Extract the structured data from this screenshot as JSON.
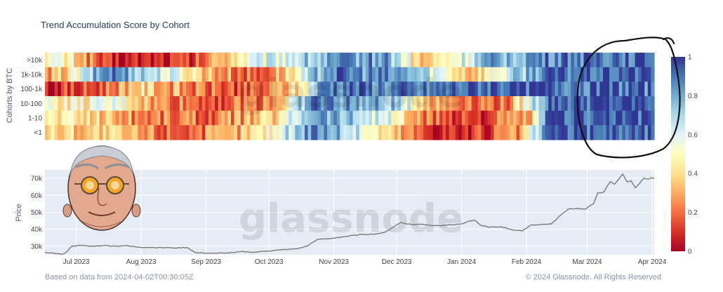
{
  "chart_data": [
    {
      "type": "heatmap",
      "title": "Trend Accumulation Score by Cohort",
      "ylabel": "Cohorts by BTC",
      "rows": [
        ">10k",
        "1k-10k",
        "100-1k",
        "10-100",
        "1-10",
        "<1"
      ],
      "columns": 190,
      "colorscale": "RdYlBu (0 = red, 0.5 = pale yellow, 1 = dark blue)",
      "colorbar": {
        "ticks": [
          "1",
          "0.8",
          "0.6",
          "0.4",
          "0.2",
          "0"
        ],
        "range": [
          0,
          1
        ]
      },
      "series": [
        {
          "name": ">10k",
          "keypoints": [
            [
              0,
              0.55
            ],
            [
              0.05,
              0.4
            ],
            [
              0.1,
              0.05
            ],
            [
              0.24,
              0.1
            ],
            [
              0.32,
              0.5
            ],
            [
              0.42,
              0.7
            ],
            [
              0.5,
              0.82
            ],
            [
              0.56,
              0.85
            ],
            [
              0.62,
              0.3
            ],
            [
              0.72,
              0.75
            ],
            [
              0.85,
              0.9
            ],
            [
              1,
              0.95
            ]
          ]
        },
        {
          "name": "1k-10k",
          "keypoints": [
            [
              0,
              0.2
            ],
            [
              0.05,
              0.5
            ],
            [
              0.1,
              0.92
            ],
            [
              0.2,
              0.6
            ],
            [
              0.28,
              0.3
            ],
            [
              0.35,
              0.15
            ],
            [
              0.42,
              0.5
            ],
            [
              0.46,
              0.9
            ],
            [
              0.6,
              0.8
            ],
            [
              0.7,
              0.35
            ],
            [
              0.82,
              0.9
            ],
            [
              1,
              0.95
            ]
          ]
        },
        {
          "name": "100-1k",
          "keypoints": [
            [
              0,
              0.08
            ],
            [
              0.08,
              0.15
            ],
            [
              0.15,
              0.4
            ],
            [
              0.25,
              0.2
            ],
            [
              0.35,
              0.15
            ],
            [
              0.42,
              0.45
            ],
            [
              0.46,
              0.92
            ],
            [
              0.62,
              0.85
            ],
            [
              0.72,
              0.95
            ],
            [
              0.82,
              0.95
            ],
            [
              1,
              0.9
            ]
          ]
        },
        {
          "name": "10-100",
          "keypoints": [
            [
              0,
              0.5
            ],
            [
              0.06,
              0.45
            ],
            [
              0.12,
              0.55
            ],
            [
              0.18,
              0.25
            ],
            [
              0.3,
              0.18
            ],
            [
              0.38,
              0.3
            ],
            [
              0.44,
              0.9
            ],
            [
              0.58,
              0.7
            ],
            [
              0.64,
              0.3
            ],
            [
              0.76,
              0.2
            ],
            [
              0.83,
              0.95
            ],
            [
              1,
              0.95
            ]
          ]
        },
        {
          "name": "1-10",
          "keypoints": [
            [
              0,
              0.45
            ],
            [
              0.08,
              0.4
            ],
            [
              0.15,
              0.25
            ],
            [
              0.28,
              0.2
            ],
            [
              0.38,
              0.4
            ],
            [
              0.44,
              0.88
            ],
            [
              0.56,
              0.6
            ],
            [
              0.62,
              0.2
            ],
            [
              0.72,
              0.12
            ],
            [
              0.8,
              0.3
            ],
            [
              0.83,
              0.95
            ],
            [
              1,
              0.95
            ]
          ]
        },
        {
          "name": "<1",
          "keypoints": [
            [
              0,
              0.4
            ],
            [
              0.1,
              0.35
            ],
            [
              0.2,
              0.2
            ],
            [
              0.3,
              0.25
            ],
            [
              0.38,
              0.55
            ],
            [
              0.44,
              0.92
            ],
            [
              0.5,
              0.7
            ],
            [
              0.56,
              0.4
            ],
            [
              0.62,
              0.15
            ],
            [
              0.7,
              0.08
            ],
            [
              0.78,
              0.25
            ],
            [
              0.83,
              0.95
            ],
            [
              1,
              0.92
            ]
          ]
        }
      ]
    },
    {
      "type": "line",
      "ylabel": "Price",
      "ylim": [
        25000,
        75000
      ],
      "yticks": [
        "30k",
        "40k",
        "50k",
        "60k",
        "70k"
      ],
      "ytick_values": [
        30000,
        40000,
        50000,
        60000,
        70000
      ],
      "xticks": [
        "Jul 2023",
        "Aug 2023",
        "Sep 2023",
        "Oct 2023",
        "Nov 2023",
        "Dec 2023",
        "Jan 2024",
        "Feb 2024",
        "Mar 2024",
        "Apr 2024"
      ],
      "xtick_days": [
        15,
        46,
        77,
        107,
        138,
        168,
        199,
        230,
        259,
        290
      ],
      "x_range_days": [
        0,
        291
      ],
      "series": [
        {
          "points": [
            [
              0,
              26500
            ],
            [
              5,
              25800
            ],
            [
              8,
              25200
            ],
            [
              10,
              26400
            ],
            [
              13,
              30200
            ],
            [
              17,
              30500
            ],
            [
              22,
              30000
            ],
            [
              28,
              30500
            ],
            [
              34,
              30100
            ],
            [
              38,
              30400
            ],
            [
              45,
              29500
            ],
            [
              52,
              29300
            ],
            [
              58,
              29200
            ],
            [
              62,
              29000
            ],
            [
              68,
              29300
            ],
            [
              72,
              26200
            ],
            [
              77,
              26000
            ],
            [
              82,
              25900
            ],
            [
              90,
              26200
            ],
            [
              95,
              26900
            ],
            [
              100,
              26500
            ],
            [
              106,
              27200
            ],
            [
              112,
              27800
            ],
            [
              120,
              28500
            ],
            [
              125,
              30000
            ],
            [
              130,
              34000
            ],
            [
              136,
              34500
            ],
            [
              140,
              35200
            ],
            [
              145,
              36000
            ],
            [
              152,
              37000
            ],
            [
              158,
              37300
            ],
            [
              162,
              38000
            ],
            [
              167,
              41800
            ],
            [
              170,
              44000
            ],
            [
              175,
              42800
            ],
            [
              180,
              43000
            ],
            [
              186,
              42200
            ],
            [
              192,
              42500
            ],
            [
              198,
              43000
            ],
            [
              205,
              45500
            ],
            [
              208,
              42500
            ],
            [
              212,
              41200
            ],
            [
              218,
              41500
            ],
            [
              223,
              39800
            ],
            [
              228,
              39000
            ],
            [
              232,
              42500
            ],
            [
              236,
              42800
            ],
            [
              242,
              43200
            ],
            [
              246,
              48000
            ],
            [
              250,
              52000
            ],
            [
              254,
              52300
            ],
            [
              258,
              51800
            ],
            [
              262,
              55000
            ],
            [
              264,
              61500
            ],
            [
              267,
              62000
            ],
            [
              270,
              68000
            ],
            [
              272,
              66500
            ],
            [
              274,
              69500
            ],
            [
              276,
              72500
            ],
            [
              278,
              68000
            ],
            [
              280,
              68500
            ],
            [
              282,
              64500
            ],
            [
              284,
              67000
            ],
            [
              286,
              70000
            ],
            [
              288,
              69500
            ],
            [
              290,
              70500
            ],
            [
              291,
              69800
            ]
          ]
        }
      ]
    }
  ],
  "watermark": "glassnode",
  "footer": {
    "left": "Based on data from 2024-04-02T00:30:05Z",
    "right": "© 2024 Glassnode. All Rights Reserved"
  },
  "colors": {
    "plot_bg": "#e5ecf6",
    "line": "#7a7a7a",
    "annotation_circle": "#000000"
  }
}
